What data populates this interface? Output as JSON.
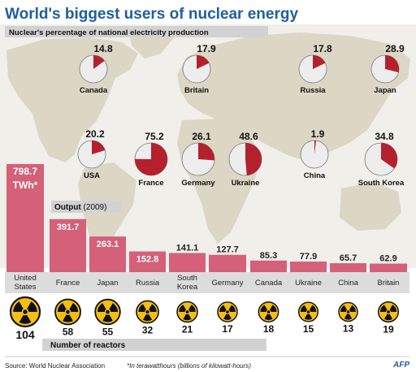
{
  "title": "World's biggest users of nuclear energy",
  "pie_section_label": "Nuclear's percentage of national electricity production",
  "output_label": "Output",
  "output_year": "(2009)",
  "unit_label": "TWh*",
  "reactors_label": "Number of reactors",
  "footnote": "*In terawatthours  (billions of kilowatt-hours)",
  "source": "Source: World Nuclear Association",
  "logo": "AFP",
  "colors": {
    "title": "#1f5f9e",
    "accent": "#b5202f",
    "bar": "#d46079",
    "bar_dark": "#bd4763",
    "map_land": "#dcd6c5",
    "map_sea": "#f1efe9",
    "label_band": "#d2d2d2",
    "pie_bg": "#ededed",
    "reactor_yellow": "#f5be12"
  },
  "chart_data": [
    {
      "type": "pie",
      "title": "Nuclear's percentage of national electricity production",
      "categories": [
        "Canada",
        "Britain",
        "Russia",
        "Japan",
        "USA",
        "France",
        "Germany",
        "Ukraine",
        "China",
        "South Korea"
      ],
      "values": [
        14.8,
        17.9,
        17.8,
        28.9,
        20.2,
        75.2,
        26.1,
        48.6,
        1.9,
        34.8
      ]
    },
    {
      "type": "bar",
      "title": "Output (2009)",
      "categories": [
        "United States",
        "France",
        "Japan",
        "Russia",
        "South Korea",
        "Germany",
        "Canada",
        "Ukraine",
        "China",
        "Britain"
      ],
      "values": [
        798.7,
        391.7,
        263.1,
        152.8,
        141.1,
        127.7,
        85.3,
        77.9,
        65.7,
        62.9
      ],
      "unit": "TWh*",
      "ylim": [
        0,
        798.7
      ]
    },
    {
      "type": "bar",
      "title": "Number of reactors",
      "categories": [
        "United States",
        "France",
        "Japan",
        "Russia",
        "South Korea",
        "Germany",
        "Canada",
        "Ukraine",
        "China",
        "Britain"
      ],
      "values": [
        104,
        58,
        55,
        32,
        21,
        17,
        18,
        15,
        13,
        19
      ]
    }
  ]
}
